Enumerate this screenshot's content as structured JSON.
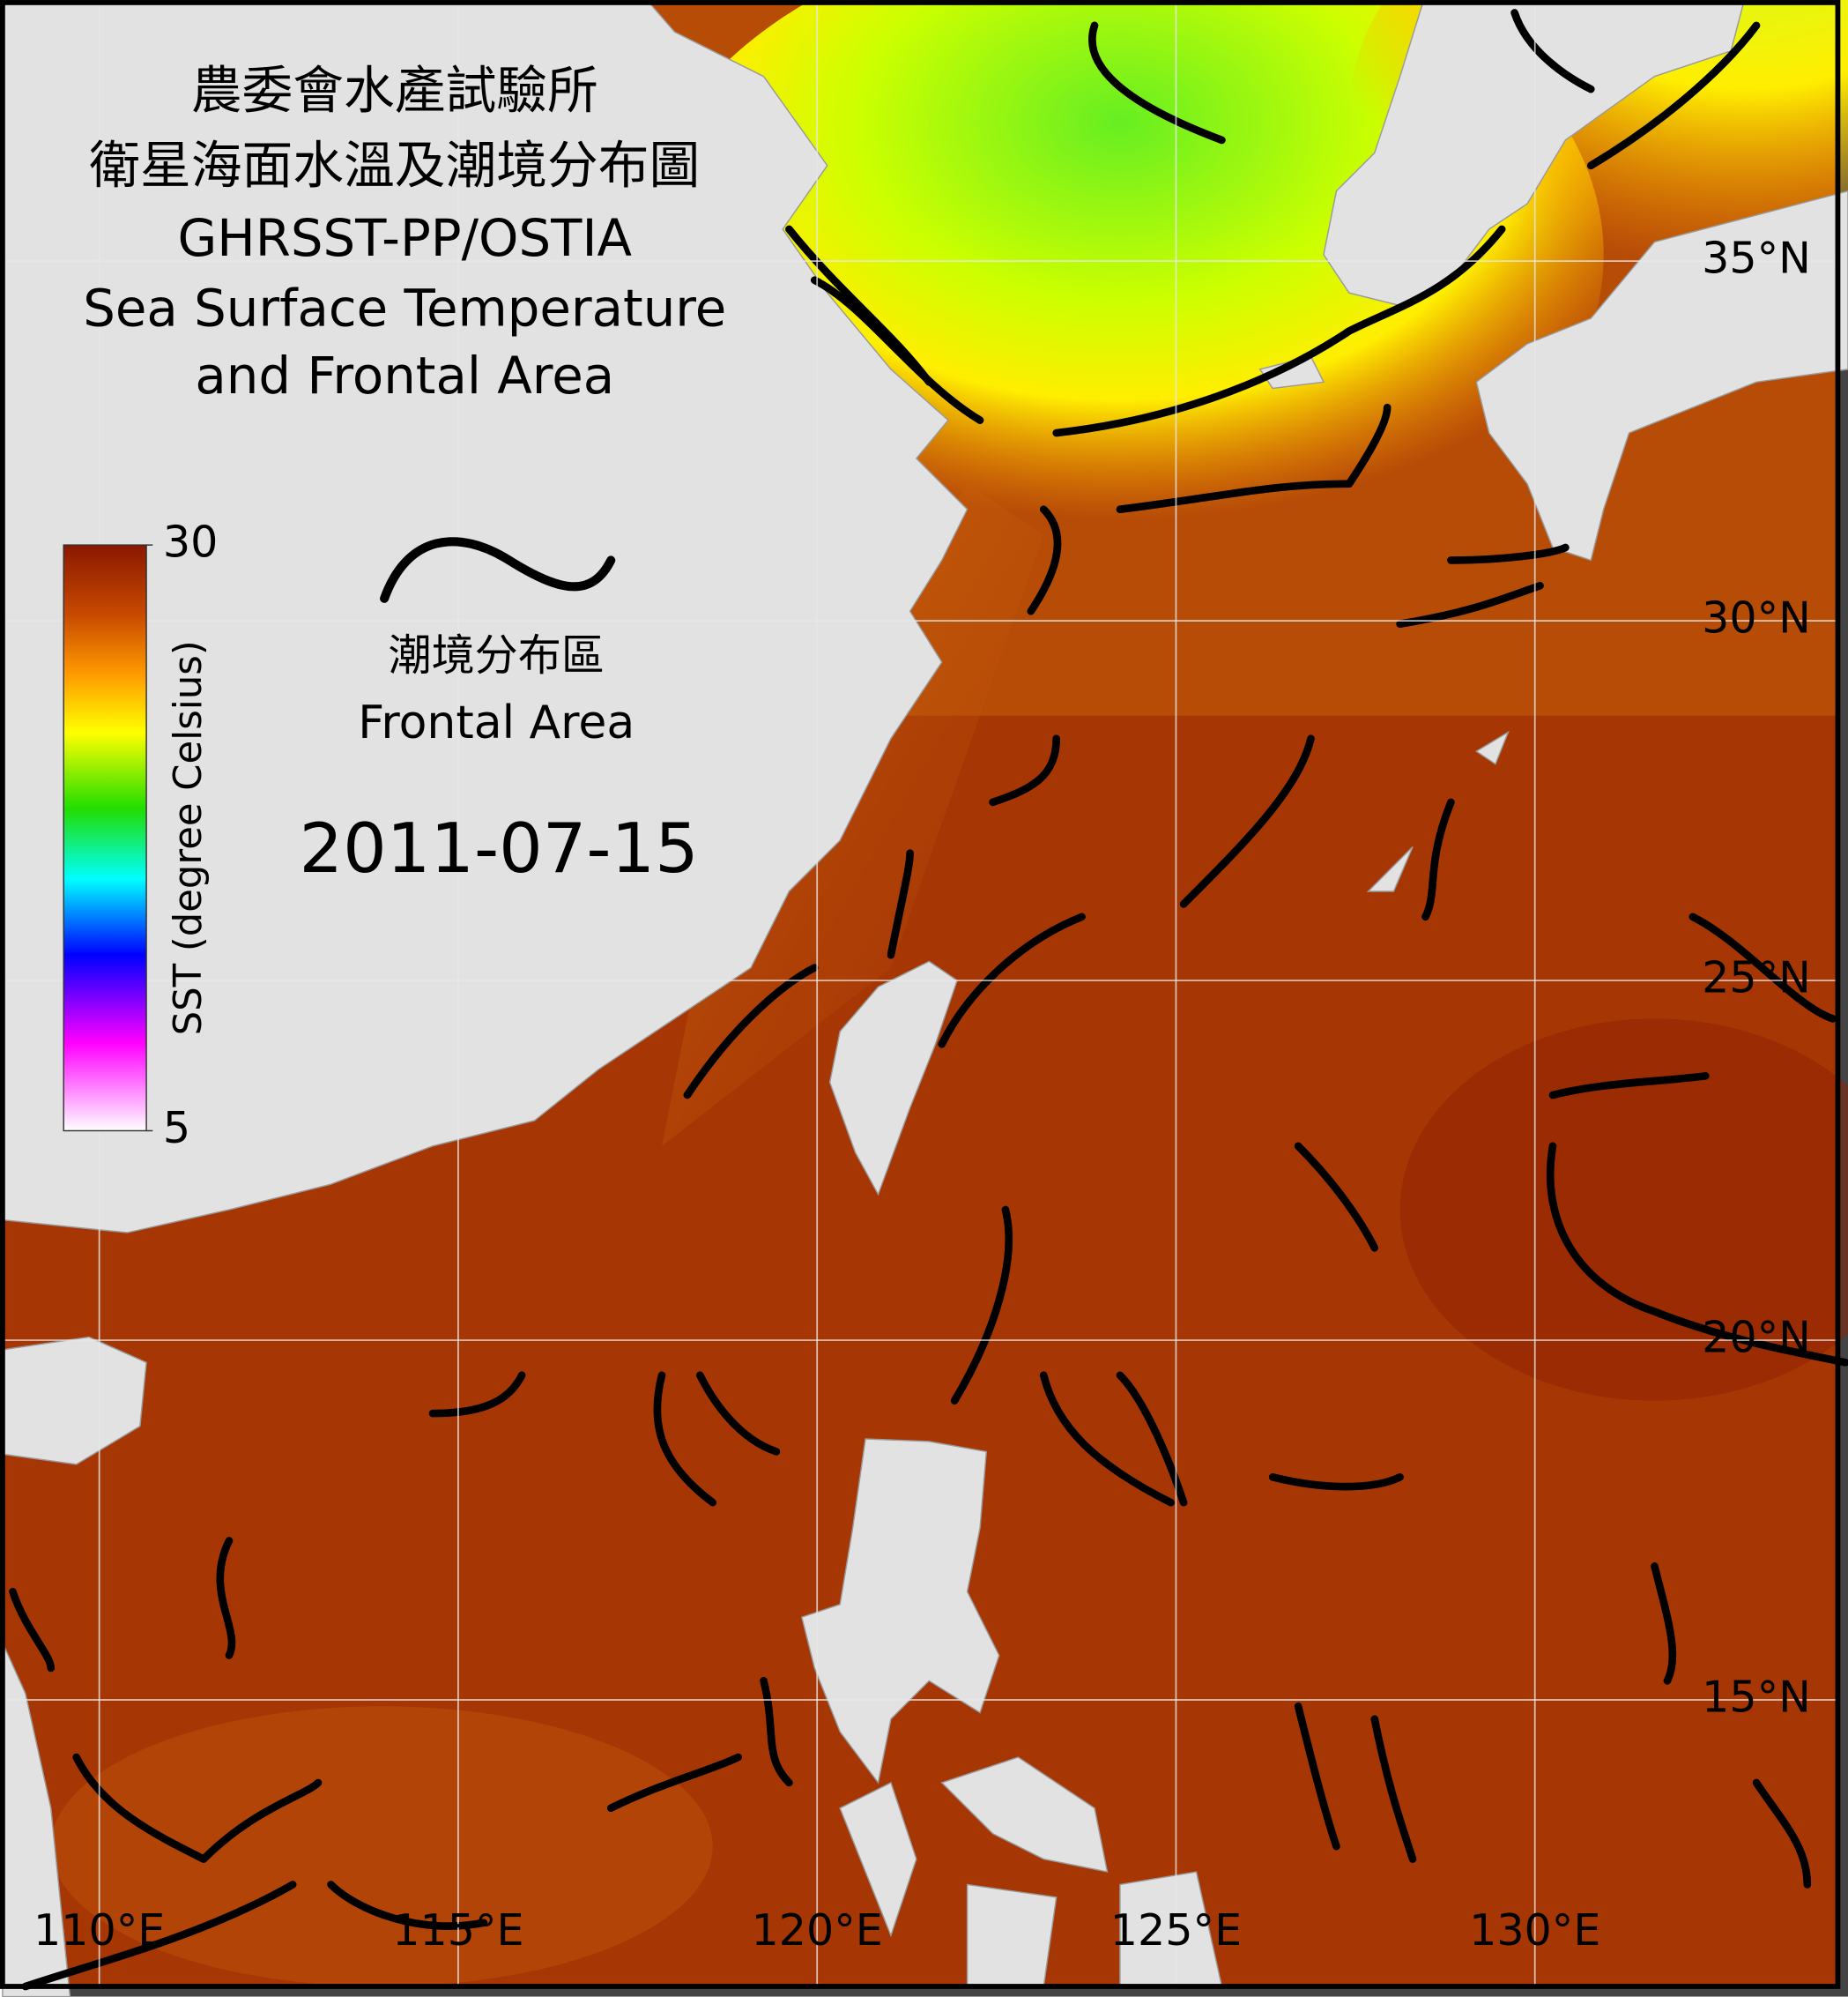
{
  "header": {
    "title_lines": [
      "農委會水產試驗所",
      "衛星海面水溫及潮境分布圖",
      "GHRSST-PP/OSTIA",
      "Sea Surface Temperature",
      "and Frontal Area"
    ]
  },
  "colorbar": {
    "label": "SST (degree Celsius)",
    "range": [
      5,
      30
    ],
    "ticks": [
      5,
      30
    ]
  },
  "legend": {
    "label_zh": "潮境分布區",
    "label_en": "Frontal Area"
  },
  "date": "2011-07-15",
  "graticule": {
    "longitudes": [
      {
        "value": 110,
        "label": "110°E"
      },
      {
        "value": 115,
        "label": "115°E"
      },
      {
        "value": 120,
        "label": "120°E"
      },
      {
        "value": 125,
        "label": "125°E"
      },
      {
        "value": 130,
        "label": "130°E"
      }
    ],
    "latitudes": [
      {
        "value": 35,
        "label": "35°N"
      },
      {
        "value": 30,
        "label": "30°N"
      },
      {
        "value": 25,
        "label": "25°N"
      },
      {
        "value": 20,
        "label": "20°N"
      },
      {
        "value": 15,
        "label": "15°N"
      }
    ]
  }
}
